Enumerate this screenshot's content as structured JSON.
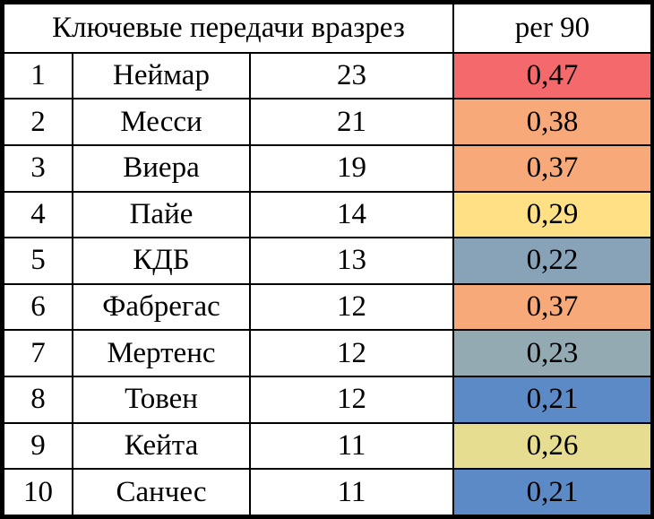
{
  "chart_data": {
    "type": "table",
    "title": "Ключевые передачи вразрез",
    "columns": [
      "",
      "",
      "",
      "per 90"
    ],
    "rows": [
      {
        "rank": "1",
        "name": "Неймар",
        "count": "23",
        "per90": "0,47",
        "color": "#F46A6C"
      },
      {
        "rank": "2",
        "name": "Месси",
        "count": "21",
        "per90": "0,38",
        "color": "#F8A979"
      },
      {
        "rank": "3",
        "name": "Виера",
        "count": "19",
        "per90": "0,37",
        "color": "#F8A979"
      },
      {
        "rank": "4",
        "name": "Пайе",
        "count": "14",
        "per90": "0,29",
        "color": "#FFE084"
      },
      {
        "rank": "5",
        "name": "КДБ",
        "count": "13",
        "per90": "0,22",
        "color": "#88A2B8"
      },
      {
        "rank": "6",
        "name": "Фабрегас",
        "count": "12",
        "per90": "0,37",
        "color": "#F8A979"
      },
      {
        "rank": "7",
        "name": "Мертенс",
        "count": "12",
        "per90": "0,23",
        "color": "#94AAB2"
      },
      {
        "rank": "8",
        "name": "Товен",
        "count": "12",
        "per90": "0,21",
        "color": "#5C8AC6"
      },
      {
        "rank": "9",
        "name": "Кейта",
        "count": "11",
        "per90": "0,26",
        "color": "#E6DD91"
      },
      {
        "rank": "10",
        "name": "Санчес",
        "count": "11",
        "per90": "0,21",
        "color": "#5C8AC6"
      }
    ]
  }
}
